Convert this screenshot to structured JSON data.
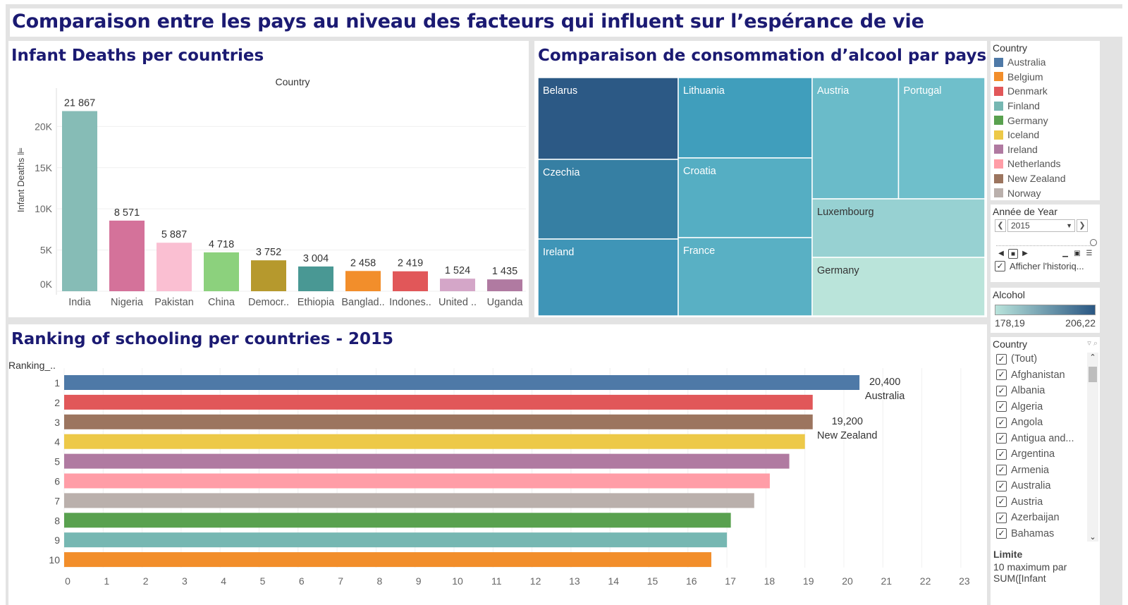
{
  "dashboard": {
    "title": "Comparaison entre les pays au niveau des facteurs qui influent sur l’espérance de vie"
  },
  "infant": {
    "title": "Infant Deaths per countries",
    "header": "Country",
    "ylabel": "Infant Deaths ⊫"
  },
  "alcohol": {
    "title": "Comparaison de consommation d’alcool par pays"
  },
  "schooling": {
    "title": "Ranking of schooling per countries  - 2015",
    "row_header": "Ranking_.."
  },
  "legend": {
    "title": "Country",
    "items": [
      {
        "label": "Australia",
        "color": "#4e79a7"
      },
      {
        "label": "Belgium",
        "color": "#f28e2b"
      },
      {
        "label": "Denmark",
        "color": "#e15759"
      },
      {
        "label": "Finland",
        "color": "#76b7b2"
      },
      {
        "label": "Germany",
        "color": "#59a14f"
      },
      {
        "label": "Iceland",
        "color": "#edc948"
      },
      {
        "label": "Ireland",
        "color": "#b07aa1"
      },
      {
        "label": "Netherlands",
        "color": "#ff9da7"
      },
      {
        "label": "New Zealand",
        "color": "#9c755f"
      },
      {
        "label": "Norway",
        "color": "#bab0ac"
      }
    ]
  },
  "year_filter": {
    "title": "Année de Year",
    "value": "2015",
    "show_history": "Afficher l'historiq..."
  },
  "alcohol_legend": {
    "title": "Alcohol",
    "min": "178,19",
    "max": "206,22",
    "color_low": "#b9e3db",
    "color_high": "#2a5783"
  },
  "country_filter": {
    "title": "Country",
    "items": [
      "(Tout)",
      "Afghanistan",
      "Albania",
      "Algeria",
      "Angola",
      "Antigua and...",
      "Argentina",
      "Armenia",
      "Australia",
      "Austria",
      "Azerbaijan",
      "Bahamas"
    ]
  },
  "limit": {
    "title": "Limite",
    "line1": "10 maximum par",
    "line2": "SUM([Infant"
  },
  "chart_data": [
    {
      "type": "bar",
      "title": "Infant Deaths per countries",
      "xlabel": "Country",
      "ylabel": "Infant Deaths",
      "ylim": [
        0,
        23000
      ],
      "yticks": [
        "0K",
        "5K",
        "10K",
        "15K",
        "20K"
      ],
      "categories": [
        "India",
        "Nigeria",
        "Pakistan",
        "China",
        "Democr..",
        "Ethiopia",
        "Banglad..",
        "Indones..",
        "United ..",
        "Uganda"
      ],
      "values": [
        21867,
        8571,
        5887,
        4718,
        3752,
        3004,
        2458,
        2419,
        1524,
        1435
      ],
      "labels": [
        "21 867",
        "8 571",
        "5 887",
        "4 718",
        "3 752",
        "3 004",
        "2 458",
        "2 419",
        "1 524",
        "1 435"
      ],
      "colors": [
        "#86bcb6",
        "#d4729a",
        "#fabfd2",
        "#8cd17d",
        "#b6992d",
        "#499894",
        "#f28e2b",
        "#e15759",
        "#d4a6c8",
        "#b07aa1"
      ],
      "grid": true
    },
    {
      "type": "heatmap",
      "subtype": "treemap",
      "title": "Comparaison de consommation d’alcool par pays",
      "columns": [
        {
          "tiles": [
            {
              "label": "Belarus",
              "value": 206.22,
              "color": "#2c5985"
            },
            {
              "label": "Czechia",
              "value": 195,
              "color": "#367fa3"
            },
            {
              "label": "Ireland",
              "value": 190,
              "color": "#3f95b7"
            }
          ]
        },
        {
          "tiles": [
            {
              "label": "Lithuania",
              "value": 192,
              "color": "#409ebc"
            },
            {
              "label": "Croatia",
              "value": 186,
              "color": "#55aec3"
            },
            {
              "label": "France",
              "value": 185,
              "color": "#59b0c4"
            }
          ]
        },
        {
          "tiles": [
            {
              "label": "Austria",
              "value": 183,
              "color": "#6abbc9"
            },
            {
              "label": "Portugal",
              "value": 183,
              "color": "#6fbfcb"
            },
            {
              "label": "Luxembourg",
              "value": 181,
              "color": "#97d1d2"
            },
            {
              "label": "Germany",
              "value": 178.19,
              "color": "#bae4da"
            }
          ]
        }
      ]
    },
    {
      "type": "bar",
      "orientation": "horizontal",
      "title": "Ranking of schooling per countries  - 2015",
      "xlim": [
        0,
        23.5
      ],
      "xticks": [
        0,
        1,
        2,
        3,
        4,
        5,
        6,
        7,
        8,
        9,
        10,
        11,
        12,
        13,
        14,
        15,
        16,
        17,
        18,
        19,
        20,
        21,
        22,
        23
      ],
      "categories": [
        "1",
        "2",
        "3",
        "4",
        "5",
        "6",
        "7",
        "8",
        "9",
        "10"
      ],
      "values": [
        20.4,
        19.2,
        19.2,
        19.0,
        18.6,
        18.1,
        17.7,
        17.1,
        17.0,
        16.6
      ],
      "colors": [
        "#4e79a7",
        "#e15759",
        "#9c755f",
        "#edc948",
        "#b07aa1",
        "#ff9da7",
        "#bab0ac",
        "#59a14f",
        "#76b7b2",
        "#f28e2b"
      ],
      "annotations": [
        {
          "row": 0,
          "value": "20,400",
          "country": "Australia"
        },
        {
          "row": 2,
          "value": "19,200",
          "country": "New Zealand"
        }
      ],
      "grid": true
    }
  ]
}
